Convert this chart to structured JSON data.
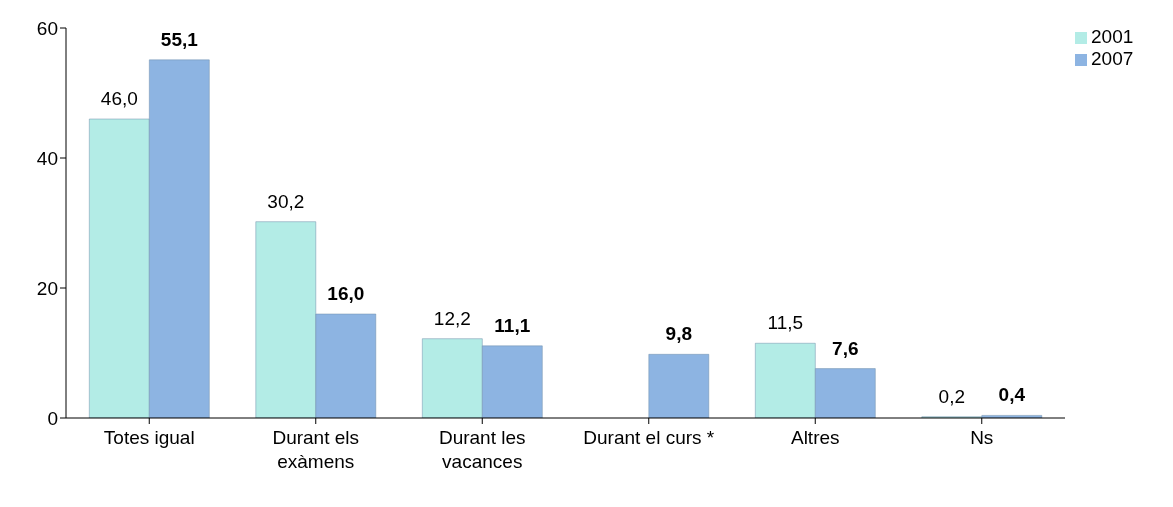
{
  "chart_data": {
    "type": "bar",
    "categories": [
      "Totes igual",
      "Durant els exàmens",
      "Durant les vacances",
      "Durant el curs *",
      "Altres",
      "Ns"
    ],
    "series": [
      {
        "name": "2001",
        "color": "#b3ece6",
        "values": [
          46.0,
          30.2,
          12.2,
          null,
          11.5,
          0.2
        ],
        "value_labels": [
          "46,0",
          "30,2",
          "12,2",
          null,
          "11,5",
          "0,2"
        ]
      },
      {
        "name": "2007",
        "color": "#8db4e2",
        "values": [
          55.1,
          16.0,
          11.1,
          9.8,
          7.6,
          0.4
        ],
        "value_labels": [
          "55,1",
          "16,0",
          "11,1",
          "9,8",
          "7,6",
          "0,4"
        ]
      }
    ],
    "ylim": [
      0,
      60
    ],
    "yticks": [
      0,
      20,
      40,
      60
    ],
    "grid": false,
    "legend": "top right"
  }
}
